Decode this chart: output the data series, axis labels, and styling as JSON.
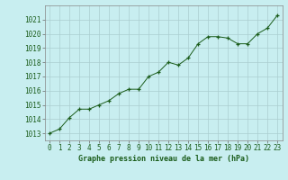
{
  "x": [
    0,
    1,
    2,
    3,
    4,
    5,
    6,
    7,
    8,
    9,
    10,
    11,
    12,
    13,
    14,
    15,
    16,
    17,
    18,
    19,
    20,
    21,
    22,
    23
  ],
  "y": [
    1013.0,
    1013.3,
    1014.1,
    1014.7,
    1014.7,
    1015.0,
    1015.3,
    1015.8,
    1016.1,
    1016.1,
    1017.0,
    1017.3,
    1018.0,
    1017.8,
    1018.3,
    1019.3,
    1019.8,
    1019.8,
    1019.7,
    1019.3,
    1019.3,
    1020.0,
    1020.4,
    1021.3
  ],
  "line_color": "#1a5c1a",
  "marker": "+",
  "marker_color": "#1a5c1a",
  "bg_color": "#c8eef0",
  "grid_color": "#aacdd0",
  "xlabel": "Graphe pression niveau de la mer (hPa)",
  "xlabel_color": "#1a5c1a",
  "tick_color": "#1a5c1a",
  "ylim_min": 1012.5,
  "ylim_max": 1022.0,
  "xlim_min": -0.5,
  "xlim_max": 23.5,
  "ytick_start": 1013,
  "ytick_end": 1021,
  "xtick_labels": [
    "0",
    "1",
    "2",
    "3",
    "4",
    "5",
    "6",
    "7",
    "8",
    "9",
    "10",
    "11",
    "12",
    "13",
    "14",
    "15",
    "16",
    "17",
    "18",
    "19",
    "20",
    "21",
    "22",
    "23"
  ]
}
